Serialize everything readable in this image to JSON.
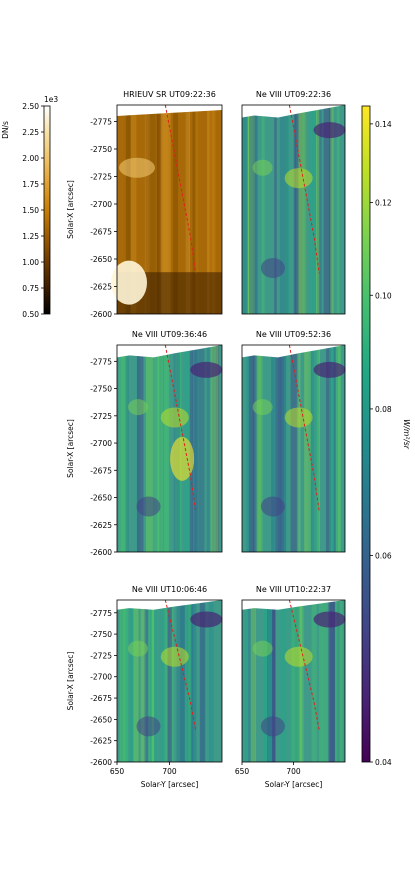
{
  "chart_data": [
    {
      "type": "heatmap",
      "title": "HRIEUV SR UT09:22:36",
      "colormap": "sdoaia171",
      "xlabel": "",
      "ylabel": "Solar-X [arcsec]",
      "xlim": [
        650,
        750
      ],
      "ylim": [
        -2790,
        -2600
      ],
      "yticks": [
        -2775,
        -2750,
        -2725,
        -2700,
        -2675,
        -2650,
        -2625,
        -2600
      ],
      "series": [
        {
          "name": "trace",
          "x": [
            696,
            700,
            705,
            710,
            715,
            720,
            723,
            725
          ],
          "y": [
            -2790,
            -2770,
            -2745,
            -2720,
            -2695,
            -2670,
            -2650,
            -2637
          ]
        }
      ]
    },
    {
      "type": "heatmap",
      "title": "Ne VIII UT09:22:36",
      "colormap": "viridis",
      "xlabel": "",
      "ylabel": "",
      "xlim": [
        650,
        750
      ],
      "ylim": [
        -2790,
        -2600
      ],
      "series": [
        {
          "name": "trace",
          "x": [
            696,
            700,
            705,
            710,
            715,
            720,
            723,
            725
          ],
          "y": [
            -2790,
            -2770,
            -2745,
            -2720,
            -2695,
            -2670,
            -2650,
            -2637
          ]
        }
      ]
    },
    {
      "type": "heatmap",
      "title": "Ne VIII UT09:36:46",
      "colormap": "viridis",
      "xlabel": "",
      "ylabel": "Solar-X [arcsec]",
      "xlim": [
        650,
        750
      ],
      "ylim": [
        -2790,
        -2600
      ],
      "yticks": [
        -2775,
        -2750,
        -2725,
        -2700,
        -2675,
        -2650,
        -2625,
        -2600
      ],
      "series": [
        {
          "name": "trace",
          "x": [
            696,
            700,
            705,
            710,
            715,
            720,
            723,
            725
          ],
          "y": [
            -2790,
            -2770,
            -2745,
            -2720,
            -2695,
            -2670,
            -2650,
            -2637
          ]
        }
      ]
    },
    {
      "type": "heatmap",
      "title": "Ne VIII UT09:52:36",
      "colormap": "viridis",
      "xlabel": "",
      "ylabel": "",
      "xlim": [
        650,
        750
      ],
      "ylim": [
        -2790,
        -2600
      ],
      "series": [
        {
          "name": "trace",
          "x": [
            696,
            700,
            705,
            710,
            715,
            720,
            723,
            725
          ],
          "y": [
            -2790,
            -2770,
            -2745,
            -2720,
            -2695,
            -2670,
            -2650,
            -2637
          ]
        }
      ]
    },
    {
      "type": "heatmap",
      "title": "Ne VIII UT10:06:46",
      "colormap": "viridis",
      "xlabel": "Solar-Y [arcsec]",
      "ylabel": "Solar-X [arcsec]",
      "xlim": [
        650,
        750
      ],
      "ylim": [
        -2790,
        -2600
      ],
      "xticks": [
        650,
        700
      ],
      "yticks": [
        -2775,
        -2750,
        -2725,
        -2700,
        -2675,
        -2650,
        -2625,
        -2600
      ],
      "series": [
        {
          "name": "trace",
          "x": [
            696,
            700,
            705,
            710,
            715,
            720,
            723,
            725
          ],
          "y": [
            -2790,
            -2770,
            -2745,
            -2720,
            -2695,
            -2670,
            -2650,
            -2637
          ]
        }
      ]
    },
    {
      "type": "heatmap",
      "title": "Ne VIII UT10:22:37",
      "colormap": "viridis",
      "xlabel": "Solar-Y [arcsec]",
      "ylabel": "",
      "xlim": [
        650,
        750
      ],
      "ylim": [
        -2790,
        -2600
      ],
      "xticks": [
        650,
        700
      ],
      "series": [
        {
          "name": "trace",
          "x": [
            696,
            700,
            705,
            710,
            715,
            720,
            723,
            725
          ],
          "y": [
            -2790,
            -2770,
            -2745,
            -2720,
            -2695,
            -2670,
            -2650,
            -2637
          ]
        }
      ]
    }
  ],
  "colorbars": [
    {
      "label": "DN/s",
      "exponent": "1e3",
      "scale": "linear",
      "range": [
        0.5,
        2.5
      ],
      "ticks": [
        "0.50",
        "0.75",
        "1.00",
        "1.25",
        "1.50",
        "1.75",
        "2.00",
        "2.25",
        "2.50"
      ],
      "colormap": "sdoaia171"
    },
    {
      "label": "W/m²/sr",
      "scale": "log",
      "range": [
        0.04,
        0.145
      ],
      "ticks": [
        "0.04",
        "0.06",
        "0.08",
        "0.10",
        "0.12",
        "0.14"
      ],
      "colormap": "viridis"
    }
  ]
}
